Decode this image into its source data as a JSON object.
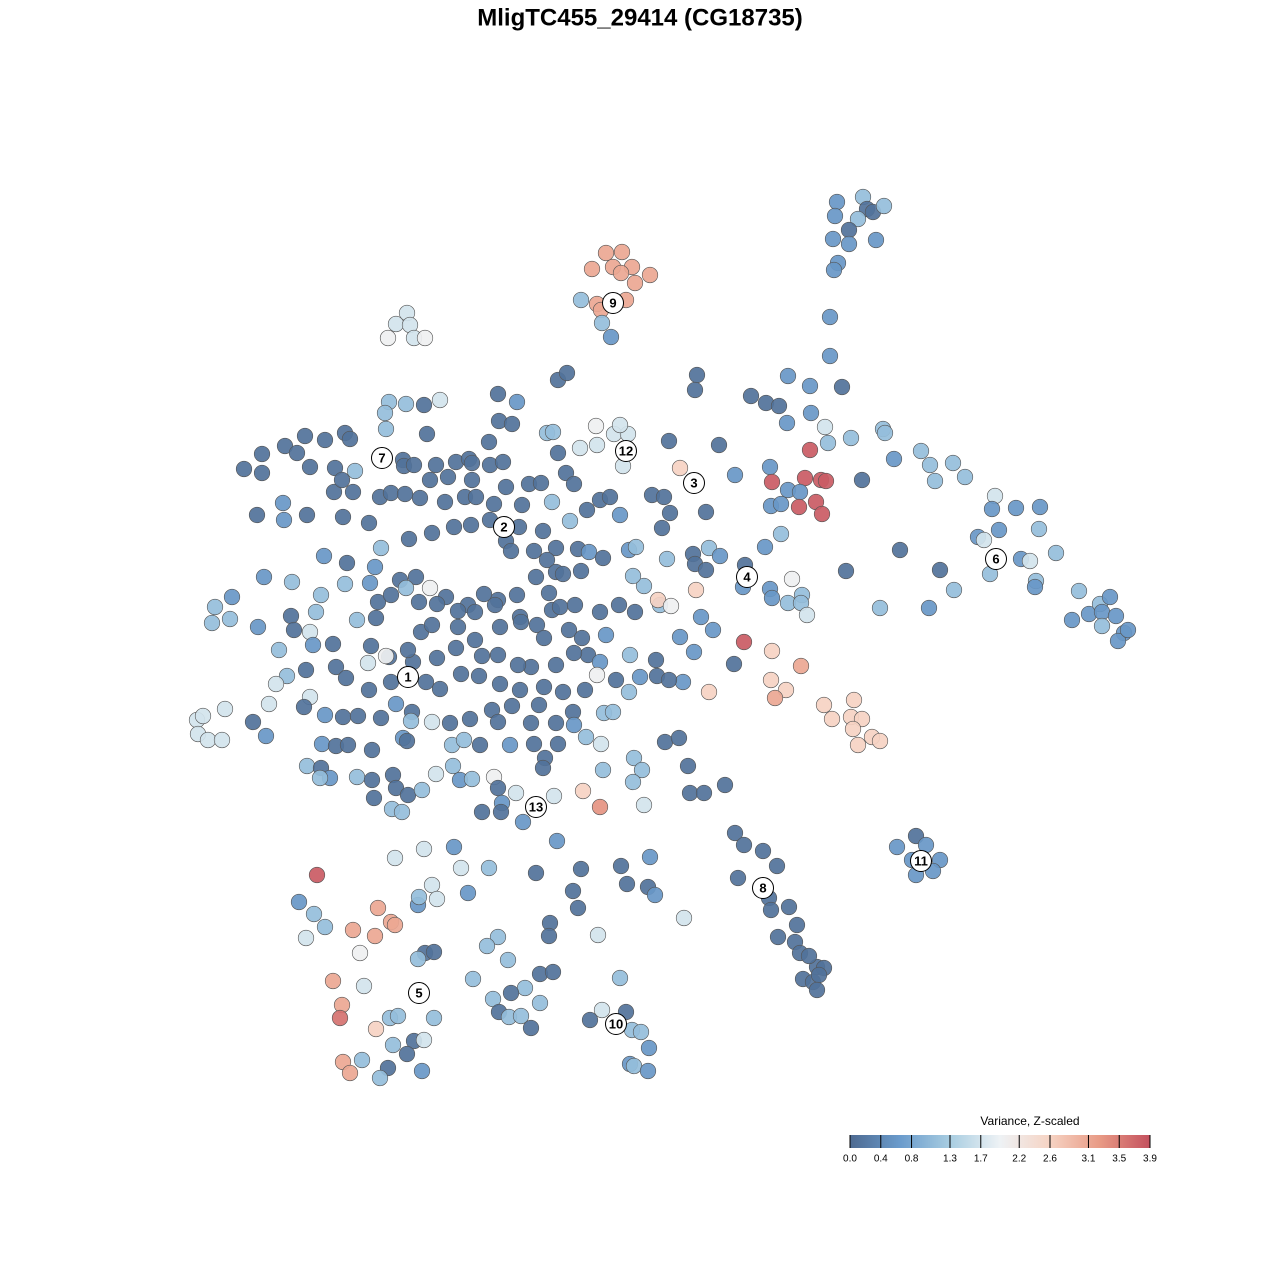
{
  "chart_data": {
    "type": "scatter",
    "title": "MligTC455_29414 (CG18735)",
    "legend_title": "Variance, Z-scaled",
    "xlim": [
      0,
      1280
    ],
    "ylim": [
      1280,
      0
    ],
    "clim": [
      0,
      3.9
    ],
    "cticks": [
      {
        "value": 0,
        "label": "0.0"
      },
      0.4,
      0.8,
      1.3,
      1.7,
      2.2,
      2.6,
      3.1,
      3.5,
      3.9
    ],
    "colors": [
      "#4d6a91",
      "#6a9bcc",
      "#a8cde1",
      "#eef2f5",
      "#f6d3c3",
      "#e89a85",
      "#c4505e"
    ],
    "labels": [
      {
        "text": "1",
        "x": 408,
        "y": 677
      },
      {
        "text": "2",
        "x": 504,
        "y": 527
      },
      {
        "text": "3",
        "x": 694,
        "y": 483
      },
      {
        "text": "4",
        "x": 747,
        "y": 577
      },
      {
        "text": "5",
        "x": 419,
        "y": 993
      },
      {
        "text": "6",
        "x": 996,
        "y": 559
      },
      {
        "text": "7",
        "x": 382,
        "y": 458
      },
      {
        "text": "8",
        "x": 763,
        "y": 888
      },
      {
        "text": "9",
        "x": 613,
        "y": 303
      },
      {
        "text": "10",
        "x": 616,
        "y": 1024
      },
      {
        "text": "11",
        "x": 921,
        "y": 861
      },
      {
        "text": "12",
        "x": 626,
        "y": 451
      },
      {
        "text": "13",
        "x": 536,
        "y": 807
      }
    ],
    "x": [
      837,
      863,
      867,
      873,
      884,
      835,
      858,
      833,
      849,
      849,
      876,
      838,
      834,
      830,
      830,
      606,
      622,
      592,
      613,
      632,
      621,
      650,
      635,
      581,
      597,
      626,
      601,
      602,
      611,
      407,
      396,
      410,
      388,
      414,
      425,
      558,
      567,
      498,
      517,
      440,
      424,
      389,
      406,
      385,
      386,
      499,
      512,
      547,
      553,
      427,
      489,
      345,
      350,
      325,
      305,
      285,
      297,
      262,
      244,
      262,
      310,
      335,
      355,
      334,
      283,
      257,
      284,
      307,
      343,
      369,
      380,
      391,
      405,
      420,
      403,
      404,
      414,
      436,
      456,
      469,
      472,
      490,
      503,
      430,
      448,
      472,
      506,
      529,
      541,
      445,
      465,
      476,
      494,
      522,
      552,
      570,
      519,
      543,
      556,
      558,
      566,
      574,
      580,
      597,
      614,
      628,
      596,
      620,
      623,
      669,
      680,
      719,
      735,
      751,
      766,
      779,
      788,
      810,
      842,
      787,
      811,
      825,
      828,
      851,
      883,
      885,
      894,
      921,
      930,
      953,
      965,
      935,
      770,
      810,
      772,
      805,
      821,
      826,
      788,
      800,
      816,
      799,
      822,
      771,
      781,
      862,
      697,
      695,
      652,
      664,
      620,
      600,
      610,
      662,
      670,
      706,
      587,
      578,
      589,
      629,
      636,
      667,
      693,
      709,
      720,
      695,
      706,
      696,
      745,
      743,
      765,
      781,
      770,
      772,
      792,
      802,
      788,
      801,
      807,
      846,
      880,
      900,
      929,
      940,
      954,
      995,
      992,
      1016,
      1040,
      1039,
      1021,
      1056,
      1036,
      1035,
      978,
      984,
      999,
      1030,
      990,
      1079,
      1089,
      1072,
      1100,
      1110,
      1102,
      1102,
      1116,
      1124,
      1118,
      1128,
      342,
      353,
      324,
      347,
      381,
      409,
      432,
      454,
      471,
      490,
      506,
      511,
      534,
      547,
      556,
      536,
      517,
      498,
      484,
      468,
      446,
      430,
      416,
      400,
      375,
      370,
      345,
      321,
      316,
      292,
      264,
      232,
      215,
      212,
      230,
      258,
      291,
      294,
      310,
      279,
      313,
      333,
      357,
      376,
      378,
      391,
      406,
      419,
      437,
      458,
      475,
      495,
      520,
      537,
      552,
      560,
      575,
      600,
      619,
      635,
      660,
      644,
      633,
      603,
      581,
      563,
      549,
      421,
      432,
      458,
      475,
      500,
      521,
      544,
      569,
      582,
      606,
      588,
      574,
      556,
      531,
      518,
      498,
      482,
      456,
      437,
      413,
      389,
      371,
      336,
      306,
      287,
      276,
      368,
      386,
      408,
      346,
      369,
      391,
      426,
      440,
      461,
      479,
      500,
      520,
      544,
      563,
      585,
      600,
      597,
      616,
      629,
      640,
      657,
      683,
      669,
      630,
      680,
      694,
      701,
      713,
      744,
      734,
      772,
      801,
      771,
      786,
      709,
      775,
      824,
      854,
      832,
      851,
      862,
      853,
      872,
      880,
      858,
      658,
      671,
      656,
      310,
      304,
      325,
      343,
      358,
      381,
      396,
      412,
      432,
      411,
      450,
      470,
      492,
      512,
      539,
      573,
      604,
      613,
      574,
      556,
      531,
      498,
      269,
      253,
      266,
      225,
      197,
      203,
      198,
      208,
      222,
      322,
      336,
      348,
      372,
      403,
      407,
      452,
      464,
      480,
      510,
      534,
      558,
      586,
      601,
      545,
      543,
      307,
      321,
      330,
      320,
      357,
      372,
      393,
      396,
      408,
      422,
      436,
      453,
      460,
      472,
      494,
      498,
      516,
      554,
      583,
      603,
      634,
      642,
      633,
      600,
      644,
      665,
      679,
      688,
      690,
      704,
      725,
      374,
      392,
      402,
      482,
      502,
      501,
      523,
      735,
      744,
      763,
      777,
      738,
      769,
      771,
      789,
      797,
      778,
      795,
      800,
      817,
      824,
      803,
      813,
      819,
      817,
      809,
      916,
      897,
      926,
      912,
      940,
      916,
      933,
      557,
      454,
      424,
      395,
      461,
      489,
      536,
      581,
      621,
      650,
      627,
      648,
      655,
      573,
      578,
      432,
      437,
      418,
      468,
      419,
      317,
      299,
      314,
      325,
      306,
      378,
      391,
      395,
      353,
      375,
      360,
      425,
      434,
      418,
      498,
      487,
      550,
      549,
      598,
      684,
      473,
      508,
      540,
      553,
      525,
      333,
      364,
      342,
      340,
      376,
      390,
      398,
      434,
      493,
      511,
      540,
      499,
      509,
      521,
      531,
      602,
      626,
      590,
      620,
      632,
      641,
      649,
      630,
      634,
      648,
      393,
      414,
      424,
      407,
      362,
      343,
      350,
      388,
      380,
      422
    ],
    "y": [
      202,
      197,
      209,
      212,
      206,
      216,
      219,
      239,
      230,
      244,
      240,
      263,
      270,
      317,
      356,
      253,
      252,
      269,
      267,
      267,
      273,
      275,
      283,
      300,
      304,
      300,
      310,
      323,
      337,
      313,
      324,
      325,
      338,
      338,
      338,
      380,
      373,
      394,
      402,
      400,
      405,
      402,
      404,
      413,
      429,
      421,
      424,
      433,
      432,
      434,
      442,
      433,
      439,
      440,
      436,
      446,
      453,
      454,
      469,
      473,
      467,
      468,
      471,
      492,
      503,
      515,
      520,
      515,
      517,
      523,
      497,
      493,
      494,
      498,
      460,
      466,
      465,
      465,
      462,
      459,
      463,
      465,
      462,
      480,
      477,
      480,
      487,
      484,
      483,
      502,
      497,
      497,
      504,
      505,
      502,
      521,
      527,
      531,
      548,
      453,
      473,
      484,
      448,
      445,
      434,
      434,
      426,
      425,
      466,
      441,
      468,
      445,
      475,
      396,
      403,
      406,
      376,
      386,
      387,
      423,
      413,
      427,
      443,
      438,
      429,
      433,
      459,
      451,
      465,
      463,
      477,
      481,
      467,
      450,
      482,
      478,
      480,
      481,
      490,
      492,
      502,
      507,
      514,
      506,
      504,
      480,
      375,
      390,
      495,
      497,
      515,
      500,
      497,
      528,
      513,
      512,
      510,
      549,
      552,
      550,
      547,
      559,
      554,
      548,
      556,
      564,
      570,
      590,
      565,
      587,
      547,
      534,
      589,
      598,
      579,
      595,
      603,
      603,
      615,
      571,
      608,
      550,
      608,
      570,
      590,
      496,
      509,
      508,
      507,
      529,
      559,
      553,
      581,
      587,
      537,
      540,
      530,
      561,
      574,
      591,
      614,
      620,
      604,
      597,
      612,
      626,
      616,
      633,
      641,
      630,
      480,
      492,
      556,
      563,
      548,
      539,
      533,
      527,
      525,
      520,
      541,
      551,
      551,
      560,
      572,
      577,
      595,
      600,
      594,
      605,
      597,
      588,
      577,
      580,
      567,
      583,
      584,
      595,
      612,
      582,
      577,
      597,
      607,
      623,
      619,
      627,
      616,
      630,
      632,
      650,
      645,
      644,
      620,
      618,
      602,
      595,
      588,
      602,
      604,
      611,
      612,
      605,
      617,
      625,
      610,
      607,
      605,
      612,
      605,
      612,
      605,
      586,
      576,
      558,
      571,
      574,
      593,
      632,
      625,
      627,
      640,
      627,
      622,
      638,
      630,
      638,
      635,
      655,
      653,
      665,
      667,
      665,
      655,
      656,
      648,
      658,
      662,
      657,
      646,
      667,
      670,
      676,
      684,
      663,
      656,
      650,
      678,
      690,
      682,
      682,
      689,
      674,
      676,
      684,
      690,
      687,
      692,
      690,
      662,
      675,
      680,
      692,
      677,
      676,
      682,
      680,
      655,
      637,
      652,
      617,
      630,
      642,
      664,
      651,
      666,
      680,
      690,
      692,
      698,
      705,
      700,
      719,
      717,
      719,
      729,
      737,
      741,
      745,
      600,
      606,
      660,
      697,
      707,
      715,
      717,
      716,
      718,
      704,
      712,
      722,
      721,
      723,
      719,
      710,
      706,
      705,
      712,
      713,
      712,
      725,
      723,
      723,
      722,
      704,
      722,
      736,
      709,
      720,
      716,
      734,
      740,
      740,
      744,
      746,
      745,
      750,
      738,
      741,
      745,
      740,
      745,
      745,
      744,
      744,
      737,
      744,
      758,
      768,
      766,
      768,
      778,
      778,
      777,
      780,
      775,
      788,
      795,
      790,
      774,
      766,
      780,
      779,
      777,
      788,
      793,
      796,
      791,
      770,
      758,
      770,
      782,
      807,
      805,
      742,
      738,
      766,
      793,
      793,
      785,
      798,
      809,
      812,
      812,
      803,
      812,
      822,
      833,
      845,
      851,
      866,
      878,
      898,
      910,
      907,
      925,
      937,
      942,
      953,
      967,
      968,
      979,
      982,
      975,
      990,
      956,
      836,
      847,
      845,
      860,
      860,
      875,
      871,
      841,
      847,
      849,
      858,
      868,
      868,
      873,
      869,
      866,
      857,
      884,
      887,
      895,
      891,
      908,
      885,
      899,
      905,
      893,
      897,
      875,
      902,
      914,
      927,
      938,
      908,
      922,
      925,
      930,
      936,
      953,
      953,
      952,
      959,
      937,
      946,
      923,
      936,
      935,
      918,
      979,
      960,
      974,
      972,
      988,
      981,
      986,
      1005,
      1018,
      1029,
      1018,
      1016,
      1018,
      999,
      993,
      1003,
      1012,
      1017,
      1016,
      1028,
      1010,
      1012,
      1020,
      978,
      1030,
      1032,
      1048,
      1064,
      1066,
      1071,
      1045,
      1041,
      1040,
      1054,
      1060,
      1062,
      1073,
      1068,
      1078,
      1071
    ],
    "values": [
      0.6,
      1.1,
      0.1,
      0.1,
      1.1,
      0.6,
      1.1,
      0.6,
      0.1,
      0.6,
      0.6,
      0.6,
      0.6,
      0.6,
      0.6,
      3.1,
      3.1,
      3.1,
      3.1,
      3.1,
      3.1,
      3.1,
      3.1,
      1.1,
      3.1,
      3.1,
      3.1,
      1.1,
      0.6,
      1.7,
      1.7,
      1.7,
      2.0,
      1.7,
      2.0,
      0.1,
      0.1,
      0.1,
      0.6,
      1.7,
      0.1,
      1.1,
      1.1,
      1.1,
      1.1,
      0.1,
      0.1,
      1.1,
      1.1,
      0.1,
      0.1,
      0.1,
      0.1,
      0.1,
      0.1,
      0.1,
      0.1,
      0.1,
      0.1,
      0.1,
      0.1,
      0.1,
      1.1,
      0.1,
      0.6,
      0.1,
      0.6,
      0.1,
      0.1,
      0.1,
      0.1,
      0.1,
      0.1,
      0.1,
      0.1,
      0.1,
      0.1,
      0.1,
      0.1,
      0.1,
      0.1,
      0.1,
      0.1,
      0.1,
      0.1,
      0.1,
      0.1,
      0.1,
      0.1,
      0.1,
      0.1,
      0.1,
      0.1,
      0.1,
      1.1,
      1.1,
      0.1,
      0.1,
      0.1,
      0.1,
      0.1,
      0.1,
      1.7,
      1.7,
      1.7,
      1.7,
      2.0,
      1.7,
      1.7,
      0.1,
      2.6,
      0.1,
      0.6,
      0.1,
      0.1,
      0.1,
      0.6,
      0.6,
      0.1,
      0.6,
      0.6,
      1.7,
      1.1,
      1.1,
      1.1,
      1.1,
      0.6,
      1.1,
      1.1,
      1.1,
      1.1,
      1.1,
      0.6,
      3.8,
      3.8,
      3.8,
      3.8,
      3.8,
      0.6,
      0.6,
      3.8,
      3.8,
      3.8,
      0.6,
      0.6,
      0.1,
      0.1,
      0.1,
      0.1,
      0.1,
      0.6,
      0.1,
      0.1,
      0.1,
      0.1,
      0.1,
      0.1,
      0.1,
      0.6,
      0.6,
      1.1,
      1.1,
      0.1,
      1.1,
      0.6,
      0.1,
      0.1,
      2.6,
      0.1,
      0.6,
      0.6,
      1.1,
      0.6,
      0.6,
      2.0,
      1.1,
      1.1,
      1.1,
      1.7,
      0.1,
      1.1,
      0.1,
      0.6,
      0.1,
      1.1,
      1.7,
      0.6,
      0.6,
      0.6,
      1.1,
      0.6,
      1.1,
      1.1,
      0.6,
      0.6,
      1.7,
      0.6,
      1.7,
      1.1,
      1.1,
      0.6,
      0.6,
      1.1,
      0.6,
      0.6,
      1.1,
      0.6,
      0.6,
      0.6,
      0.6,
      0.1,
      0.1,
      0.6,
      0.1,
      1.1,
      0.1,
      0.1,
      0.1,
      0.1,
      0.1,
      0.1,
      0.1,
      0.1,
      0.1,
      0.1,
      0.1,
      0.1,
      0.1,
      0.1,
      0.1,
      0.1,
      2.0,
      0.1,
      0.1,
      0.6,
      0.6,
      1.1,
      1.1,
      1.1,
      1.1,
      0.6,
      0.6,
      1.1,
      1.1,
      1.1,
      0.6,
      0.1,
      0.1,
      1.7,
      1.1,
      0.6,
      0.1,
      1.1,
      0.1,
      0.1,
      0.1,
      1.1,
      0.1,
      0.1,
      0.1,
      0.1,
      0.1,
      0.1,
      0.1,
      0.1,
      0.1,
      0.1,
      0.1,
      0.1,
      0.1,
      1.1,
      1.1,
      1.1,
      0.1,
      0.1,
      0.1,
      0.1,
      0.1,
      0.1,
      0.1,
      0.1,
      0.1,
      0.1,
      0.1,
      0.1,
      0.1,
      0.6,
      0.1,
      0.1,
      0.1,
      0.1,
      0.1,
      0.1,
      0.1,
      0.1,
      0.1,
      0.1,
      0.1,
      0.1,
      0.1,
      0.1,
      1.1,
      1.7,
      1.7,
      2.0,
      0.1,
      0.1,
      0.1,
      0.1,
      0.1,
      0.1,
      0.1,
      0.1,
      0.1,
      0.1,
      0.1,
      0.1,
      0.1,
      0.6,
      2.0,
      0.1,
      1.1,
      0.6,
      0.1,
      0.6,
      0.1,
      1.1,
      0.6,
      0.6,
      0.6,
      0.6,
      3.8,
      0.1,
      2.6,
      3.1,
      2.6,
      2.6,
      2.6,
      3.1,
      2.6,
      2.6,
      2.6,
      2.6,
      2.6,
      2.6,
      2.6,
      2.6,
      2.6,
      2.6,
      2.0,
      0.1,
      1.7,
      0.1,
      0.6,
      0.1,
      0.1,
      0.1,
      0.6,
      0.1,
      1.7,
      1.1,
      0.1,
      0.1,
      0.1,
      0.1,
      0.1,
      0.1,
      1.1,
      1.1,
      0.6,
      0.1,
      0.1,
      0.1,
      1.7,
      0.1,
      0.6,
      1.7,
      1.7,
      1.7,
      1.7,
      1.7,
      1.7,
      0.6,
      0.1,
      0.1,
      0.1,
      0.6,
      0.1,
      1.1,
      1.1,
      0.1,
      0.6,
      0.1,
      0.1,
      1.1,
      1.7,
      0.1,
      0.1,
      1.1,
      0.1,
      0.6,
      1.1,
      1.1,
      0.1,
      0.1,
      0.1,
      0.1,
      1.1,
      1.7,
      1.1,
      0.6,
      1.1,
      2.0,
      0.1,
      1.7,
      1.7,
      2.6,
      1.1,
      1.1,
      1.1,
      1.1,
      3.3,
      1.7,
      0.1,
      0.1,
      0.1,
      0.1,
      0.1,
      0.1,
      0.1,
      1.1,
      1.1,
      0.1,
      0.6,
      0.1,
      0.6,
      0.1,
      0.1,
      0.1,
      0.1,
      0.1,
      0.1,
      0.1,
      0.1,
      0.1,
      0.1,
      0.1,
      0.1,
      0.1,
      0.1,
      0.1,
      0.1,
      0.1,
      0.1,
      0.1,
      0.1,
      0.6,
      0.6,
      0.6,
      0.6,
      0.6,
      0.6,
      0.6,
      0.6,
      1.7,
      1.7,
      1.7,
      1.1,
      0.1,
      0.1,
      0.1,
      0.6,
      0.1,
      0.1,
      0.6,
      0.1,
      0.1,
      1.7,
      1.7,
      0.6,
      0.6,
      1.1,
      3.8,
      0.6,
      1.1,
      1.1,
      1.7,
      3.1,
      3.1,
      3.1,
      3.1,
      3.1,
      2.0,
      0.1,
      0.1,
      1.1,
      1.1,
      1.1,
      0.1,
      0.1,
      1.7,
      1.7,
      1.1,
      1.1,
      0.1,
      0.1,
      1.1,
      3.1,
      1.7,
      3.1,
      3.6,
      2.6,
      1.1,
      1.1,
      1.1,
      1.1,
      0.1,
      1.1,
      0.1,
      1.1,
      1.1,
      0.1,
      1.7,
      0.1,
      0.1,
      1.1,
      1.1,
      1.1,
      0.6,
      0.6,
      1.1,
      0.6,
      1.1,
      0.1,
      1.7,
      0.1,
      1.1,
      3.1,
      3.1,
      0.1,
      1.1,
      0.6
    ]
  }
}
